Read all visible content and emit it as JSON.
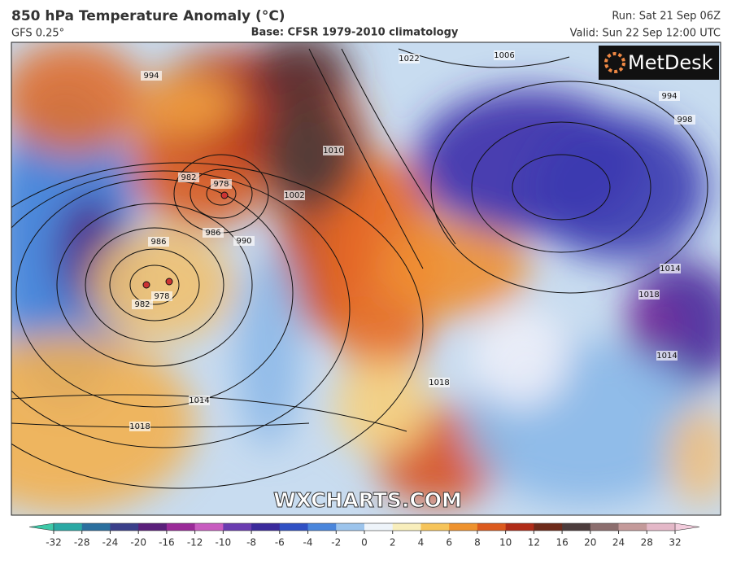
{
  "header": {
    "title": "850 hPa Temperature Anomaly (°C)",
    "model": "GFS 0.25°",
    "base": "Base: CFSR 1979-2010 climatology",
    "run": "Run: Sat 21 Sep 06Z",
    "valid": "Valid: Sun 22 Sep 12:00 UTC"
  },
  "map": {
    "logo": "MetDesk",
    "watermark": "WXCHARTS.COM",
    "isobar_labels": [
      "994",
      "982",
      "978",
      "986",
      "990",
      "986",
      "978",
      "982",
      "1014",
      "1018",
      "1002",
      "1010",
      "1022",
      "1014",
      "994",
      "998",
      "1014",
      "1018",
      "1018",
      "1006"
    ]
  },
  "colorbar": {
    "ticks": [
      -32,
      -28,
      -24,
      -20,
      -16,
      -12,
      -10,
      -8,
      -6,
      -4,
      -2,
      0,
      2,
      4,
      6,
      8,
      10,
      12,
      16,
      20,
      24,
      28,
      32
    ],
    "colors": [
      "#3ec9a8",
      "#2aa9a4",
      "#2a6f9e",
      "#3a3f8a",
      "#5a1f7a",
      "#9a2a98",
      "#c85cc0",
      "#6a3cb0",
      "#3a2a9c",
      "#2f50c4",
      "#4a86dc",
      "#9cc4ec",
      "#eef4fa",
      "#f8eebc",
      "#f6c45a",
      "#ee922e",
      "#dc5a1e",
      "#b02c18",
      "#6e2a1a",
      "#4c3c3c",
      "#8c6e6e",
      "#c49a9a",
      "#e4b8c8",
      "#f2ccdc"
    ]
  }
}
